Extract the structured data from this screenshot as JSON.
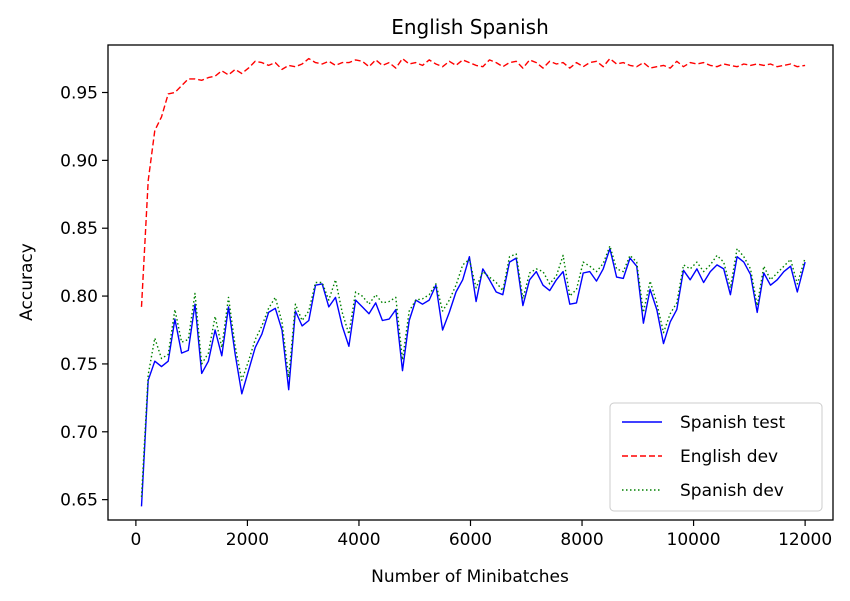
{
  "chart_data": {
    "type": "line",
    "title": "English Spanish",
    "xlabel": "Number of Minibatches",
    "ylabel": "Accuracy",
    "xlim": [
      -500,
      12500
    ],
    "ylim": [
      0.635,
      0.985
    ],
    "x_ticks": [
      0,
      2000,
      4000,
      6000,
      8000,
      10000,
      12000
    ],
    "y_ticks": [
      0.65,
      0.7,
      0.75,
      0.8,
      0.85,
      0.9,
      0.95
    ],
    "y_tick_labels": [
      "0.65",
      "0.70",
      "0.75",
      "0.80",
      "0.85",
      "0.90",
      "0.95"
    ],
    "legend_position": "lower right",
    "x": [
      100,
      220,
      340,
      460,
      580,
      700,
      820,
      940,
      1060,
      1180,
      1300,
      1420,
      1540,
      1660,
      1780,
      1900,
      2020,
      2140,
      2260,
      2380,
      2500,
      2620,
      2740,
      2860,
      2980,
      3100,
      3220,
      3340,
      3460,
      3580,
      3700,
      3820,
      3940,
      4060,
      4180,
      4300,
      4420,
      4540,
      4660,
      4780,
      4900,
      5020,
      5140,
      5260,
      5380,
      5500,
      5620,
      5740,
      5860,
      5980,
      6100,
      6220,
      6340,
      6460,
      6580,
      6700,
      6820,
      6940,
      7060,
      7180,
      7300,
      7420,
      7540,
      7660,
      7780,
      7900,
      8020,
      8140,
      8260,
      8380,
      8500,
      8620,
      8740,
      8860,
      8980,
      9100,
      9220,
      9340,
      9460,
      9580,
      9700,
      9820,
      9940,
      10060,
      10180,
      10300,
      10420,
      10540,
      10660,
      10780,
      10900,
      11020,
      11140,
      11260,
      11380,
      11500,
      11620,
      11740,
      11860,
      12000
    ],
    "series": [
      {
        "name": "Spanish test",
        "color": "#0000ff",
        "style": "solid",
        "values": [
          0.645,
          0.738,
          0.752,
          0.748,
          0.752,
          0.783,
          0.758,
          0.76,
          0.794,
          0.743,
          0.752,
          0.775,
          0.756,
          0.792,
          0.757,
          0.728,
          0.745,
          0.762,
          0.772,
          0.788,
          0.791,
          0.775,
          0.731,
          0.789,
          0.778,
          0.782,
          0.808,
          0.809,
          0.792,
          0.799,
          0.778,
          0.763,
          0.797,
          0.792,
          0.787,
          0.795,
          0.782,
          0.783,
          0.79,
          0.745,
          0.782,
          0.797,
          0.794,
          0.797,
          0.808,
          0.775,
          0.788,
          0.803,
          0.812,
          0.829,
          0.796,
          0.82,
          0.812,
          0.803,
          0.801,
          0.825,
          0.828,
          0.793,
          0.812,
          0.818,
          0.808,
          0.804,
          0.812,
          0.818,
          0.794,
          0.795,
          0.817,
          0.818,
          0.811,
          0.82,
          0.835,
          0.814,
          0.813,
          0.828,
          0.822,
          0.78,
          0.805,
          0.79,
          0.765,
          0.781,
          0.79,
          0.819,
          0.812,
          0.82,
          0.81,
          0.818,
          0.823,
          0.82,
          0.801,
          0.829,
          0.825,
          0.816,
          0.788,
          0.817,
          0.808,
          0.812,
          0.818,
          0.822,
          0.803,
          0.825
        ]
      },
      {
        "name": "English dev",
        "color": "#ff0000",
        "style": "dashed",
        "values": [
          0.792,
          0.885,
          0.922,
          0.932,
          0.949,
          0.95,
          0.955,
          0.96,
          0.96,
          0.959,
          0.961,
          0.962,
          0.966,
          0.963,
          0.967,
          0.964,
          0.968,
          0.973,
          0.972,
          0.97,
          0.972,
          0.967,
          0.97,
          0.969,
          0.971,
          0.975,
          0.972,
          0.971,
          0.973,
          0.97,
          0.972,
          0.972,
          0.974,
          0.973,
          0.969,
          0.974,
          0.97,
          0.972,
          0.968,
          0.975,
          0.971,
          0.972,
          0.97,
          0.974,
          0.971,
          0.969,
          0.973,
          0.97,
          0.974,
          0.972,
          0.97,
          0.969,
          0.974,
          0.972,
          0.969,
          0.972,
          0.973,
          0.968,
          0.974,
          0.972,
          0.968,
          0.973,
          0.971,
          0.972,
          0.968,
          0.972,
          0.969,
          0.972,
          0.973,
          0.969,
          0.975,
          0.971,
          0.972,
          0.97,
          0.969,
          0.972,
          0.968,
          0.969,
          0.97,
          0.968,
          0.973,
          0.969,
          0.972,
          0.971,
          0.972,
          0.97,
          0.969,
          0.971,
          0.97,
          0.969,
          0.971,
          0.97,
          0.971,
          0.97,
          0.971,
          0.969,
          0.97,
          0.971,
          0.969,
          0.97
        ]
      },
      {
        "name": "Spanish dev",
        "color": "#008000",
        "style": "dotted",
        "values": [
          0.652,
          0.742,
          0.769,
          0.754,
          0.757,
          0.79,
          0.766,
          0.768,
          0.802,
          0.75,
          0.758,
          0.785,
          0.762,
          0.799,
          0.763,
          0.738,
          0.752,
          0.768,
          0.778,
          0.791,
          0.799,
          0.781,
          0.74,
          0.794,
          0.782,
          0.789,
          0.81,
          0.81,
          0.797,
          0.812,
          0.788,
          0.772,
          0.803,
          0.8,
          0.794,
          0.801,
          0.795,
          0.796,
          0.799,
          0.753,
          0.789,
          0.797,
          0.798,
          0.801,
          0.809,
          0.789,
          0.797,
          0.808,
          0.823,
          0.827,
          0.806,
          0.818,
          0.814,
          0.81,
          0.804,
          0.829,
          0.831,
          0.798,
          0.817,
          0.82,
          0.818,
          0.809,
          0.815,
          0.83,
          0.8,
          0.805,
          0.825,
          0.822,
          0.818,
          0.824,
          0.837,
          0.82,
          0.818,
          0.83,
          0.825,
          0.788,
          0.811,
          0.795,
          0.773,
          0.787,
          0.795,
          0.823,
          0.82,
          0.825,
          0.818,
          0.823,
          0.83,
          0.825,
          0.806,
          0.835,
          0.829,
          0.82,
          0.793,
          0.822,
          0.812,
          0.817,
          0.822,
          0.827,
          0.809,
          0.828
        ]
      }
    ]
  }
}
